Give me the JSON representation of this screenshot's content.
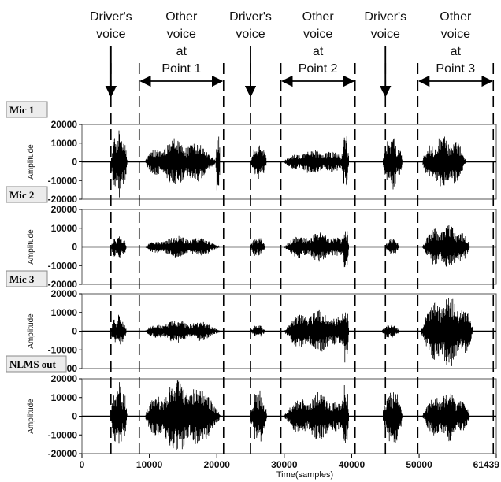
{
  "annotations": [
    {
      "lines": [
        "Driver's",
        "voice"
      ],
      "type": "arrow-down"
    },
    {
      "lines": [
        "Other",
        "voice",
        "at",
        "Point 1"
      ],
      "type": "span"
    },
    {
      "lines": [
        "Driver's",
        "voice"
      ],
      "type": "arrow-down"
    },
    {
      "lines": [
        "Other",
        "voice",
        "at",
        "Point 2"
      ],
      "type": "span"
    },
    {
      "lines": [
        "Driver's",
        "voice"
      ],
      "type": "arrow-down"
    },
    {
      "lines": [
        "Other",
        "voice",
        "at",
        "Point 3"
      ],
      "type": "span"
    }
  ],
  "chart_data": {
    "type": "line",
    "xlabel": "Time(samples)",
    "ylabel": "Amplitude",
    "xlim": [
      0,
      61439
    ],
    "xticks": [
      0,
      10000,
      20000,
      30000,
      40000,
      50000,
      61439
    ],
    "ylim": [
      -20000,
      20000
    ],
    "yticks": [
      20000,
      10000,
      0,
      -10000,
      -20000
    ],
    "boundaries": [
      4300,
      8500,
      21000,
      25000,
      29500,
      40500,
      45000,
      49800,
      61000
    ],
    "series": [
      {
        "name": "Mic 1",
        "segments": [
          {
            "start": 4300,
            "end": 6700,
            "peak": 20000
          },
          {
            "start": 9400,
            "end": 19800,
            "peak": 13000
          },
          {
            "start": 19800,
            "end": 20500,
            "peak": 19000
          },
          {
            "start": 25000,
            "end": 27400,
            "peak": 10000
          },
          {
            "start": 30000,
            "end": 39600,
            "peak": 7000
          },
          {
            "start": 38500,
            "end": 39600,
            "peak": 16000
          },
          {
            "start": 44600,
            "end": 47500,
            "peak": 15000
          },
          {
            "start": 50500,
            "end": 57000,
            "peak": 15000
          }
        ]
      },
      {
        "name": "Mic 2",
        "segments": [
          {
            "start": 4300,
            "end": 6600,
            "peak": 7000
          },
          {
            "start": 9400,
            "end": 20500,
            "peak": 6000
          },
          {
            "start": 24900,
            "end": 27200,
            "peak": 5500
          },
          {
            "start": 30000,
            "end": 39600,
            "peak": 8000
          },
          {
            "start": 38500,
            "end": 39600,
            "peak": 12500
          },
          {
            "start": 45000,
            "end": 47000,
            "peak": 5000
          },
          {
            "start": 50500,
            "end": 57500,
            "peak": 13000
          }
        ]
      },
      {
        "name": "Mic 3",
        "segments": [
          {
            "start": 4300,
            "end": 6600,
            "peak": 9000
          },
          {
            "start": 9400,
            "end": 20500,
            "peak": 6500
          },
          {
            "start": 25000,
            "end": 27200,
            "peak": 3500
          },
          {
            "start": 30000,
            "end": 39600,
            "peak": 12000
          },
          {
            "start": 38500,
            "end": 39600,
            "peak": 17000
          },
          {
            "start": 44500,
            "end": 47000,
            "peak": 4000
          },
          {
            "start": 50300,
            "end": 58000,
            "peak": 20000
          }
        ]
      },
      {
        "name": "NLMS out",
        "segments": [
          {
            "start": 4300,
            "end": 6700,
            "peak": 20000
          },
          {
            "start": 9400,
            "end": 20500,
            "peak": 20000
          },
          {
            "start": 25000,
            "end": 27400,
            "peak": 16000
          },
          {
            "start": 30000,
            "end": 39600,
            "peak": 13000
          },
          {
            "start": 38500,
            "end": 39600,
            "peak": 20000
          },
          {
            "start": 44600,
            "end": 47500,
            "peak": 17000
          },
          {
            "start": 50500,
            "end": 57500,
            "peak": 14000
          }
        ]
      }
    ]
  }
}
